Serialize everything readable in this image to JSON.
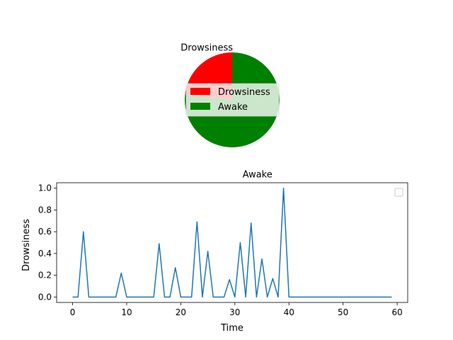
{
  "colors": {
    "drowsiness": "#ff0000",
    "awake": "#008000",
    "line": "#1f77b4"
  },
  "chart_data": [
    {
      "type": "pie",
      "labels": [
        "Drowsiness",
        "Awake"
      ],
      "values": [
        23,
        77
      ],
      "legend": {
        "entries": [
          "Drowsiness",
          "Awake"
        ],
        "placement": "center"
      }
    },
    {
      "type": "line",
      "title": "",
      "xlabel": "Time",
      "ylabel": "Drowsiness",
      "xlim": [
        -2.95,
        61.95
      ],
      "ylim": [
        -0.05,
        1.05
      ],
      "xticks": [
        0,
        10,
        20,
        30,
        40,
        50,
        60
      ],
      "xtick_labels": [
        "0",
        "10",
        "20",
        "30",
        "40",
        "50",
        "60"
      ],
      "yticks": [
        0.0,
        0.2,
        0.4,
        0.6,
        0.8,
        1.0
      ],
      "ytick_labels": [
        "0.0",
        "0.2",
        "0.4",
        "0.6",
        "0.8",
        "1.0"
      ],
      "legend": {
        "entries": [],
        "placement": "top-right"
      },
      "series": [
        {
          "name": "drowsiness",
          "x": [
            0,
            1,
            2,
            3,
            4,
            5,
            6,
            7,
            8,
            9,
            10,
            11,
            12,
            13,
            14,
            15,
            16,
            17,
            18,
            19,
            20,
            21,
            22,
            23,
            24,
            25,
            26,
            27,
            28,
            29,
            30,
            31,
            32,
            33,
            34,
            35,
            36,
            37,
            38,
            39,
            40,
            41,
            42,
            43,
            44,
            45,
            46,
            47,
            48,
            49,
            50,
            51,
            52,
            53,
            54,
            55,
            56,
            57,
            58,
            59
          ],
          "y": [
            0,
            0,
            0.6,
            0,
            0,
            0,
            0,
            0,
            0,
            0.22,
            0,
            0,
            0,
            0,
            0,
            0,
            0.49,
            0,
            0,
            0.27,
            0,
            0,
            0,
            0.69,
            0,
            0.42,
            0,
            0,
            0,
            0.16,
            0,
            0.5,
            0,
            0.68,
            0,
            0.35,
            0,
            0.17,
            0,
            1.0,
            0,
            0,
            0,
            0,
            0,
            0,
            0,
            0,
            0,
            0,
            0,
            0,
            0,
            0,
            0,
            0,
            0,
            0,
            0,
            0
          ]
        }
      ]
    }
  ]
}
